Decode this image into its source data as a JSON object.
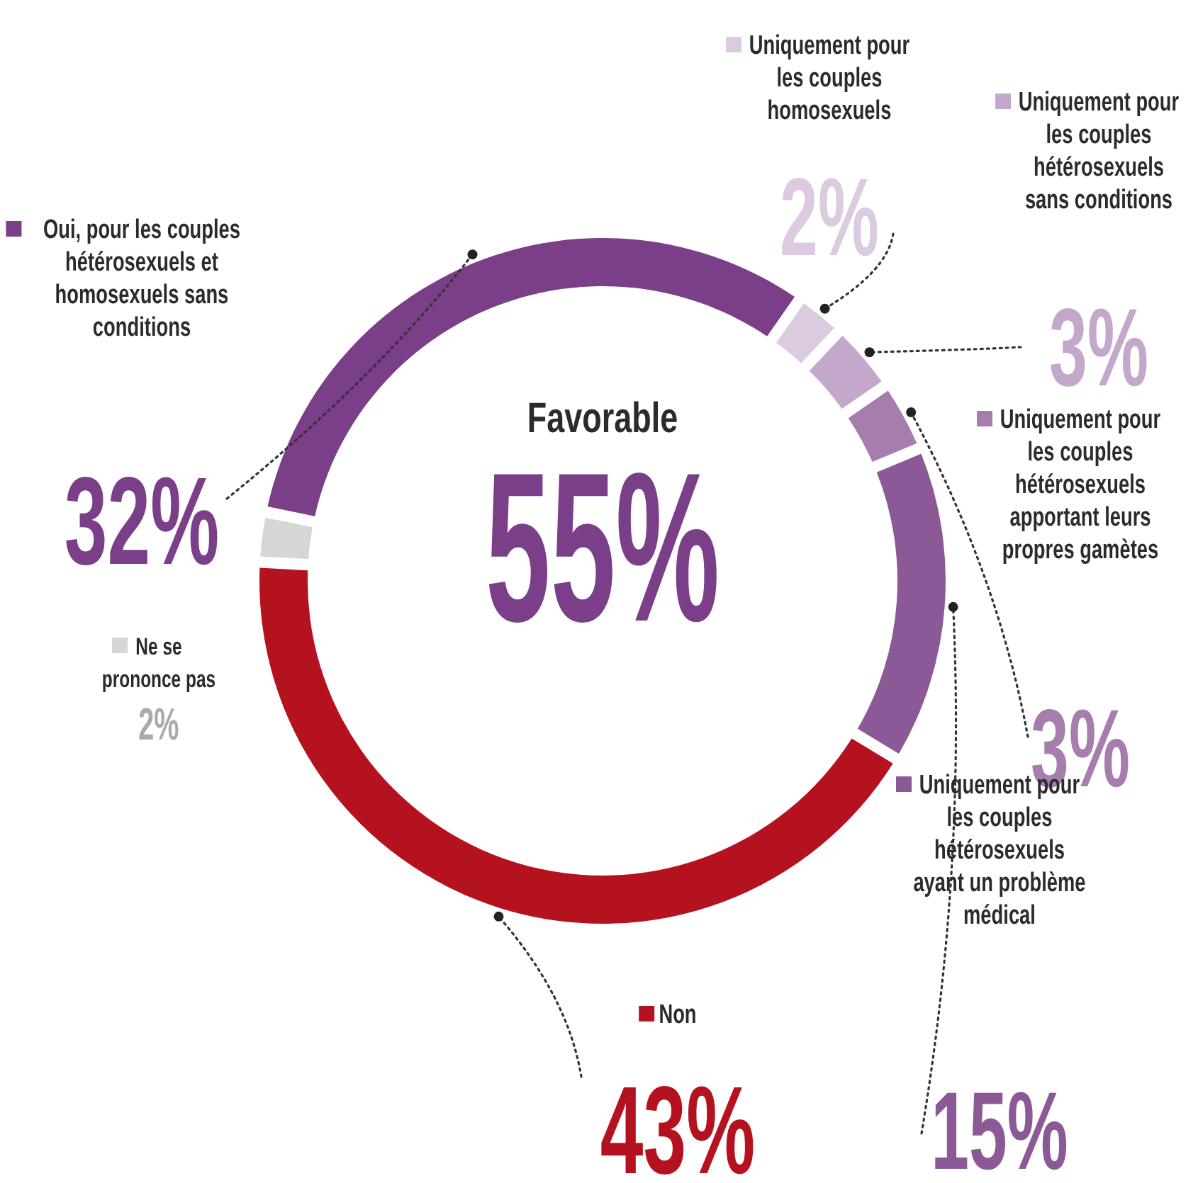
{
  "chart_data": {
    "type": "donut",
    "categories": [
      "Uniquement pour les couples homosexuels",
      "Uniquement pour les couples hétérosexuels sans conditions",
      "Uniquement pour les couples hétérosexuels apportant leurs propres gamètes",
      "Uniquement pour les couples hétérosexuels ayant un problème médical",
      "Non",
      "Ne se prononce pas",
      "Oui, pour les couples hétérosexuels et homosexuels sans conditions"
    ],
    "values": [
      2,
      3,
      3,
      15,
      43,
      2,
      32
    ],
    "value_labels": [
      "2%",
      "3%",
      "3%",
      "15%",
      "43%",
      "2%",
      "32%"
    ],
    "colors": [
      "#dccbe0",
      "#c4a8cb",
      "#a67eae",
      "#8b5a96",
      "#b5121f",
      "#d6d6d6",
      "#7a3f88"
    ],
    "annotations": [
      "Favorable",
      "55%"
    ],
    "legend": "right"
  }
}
